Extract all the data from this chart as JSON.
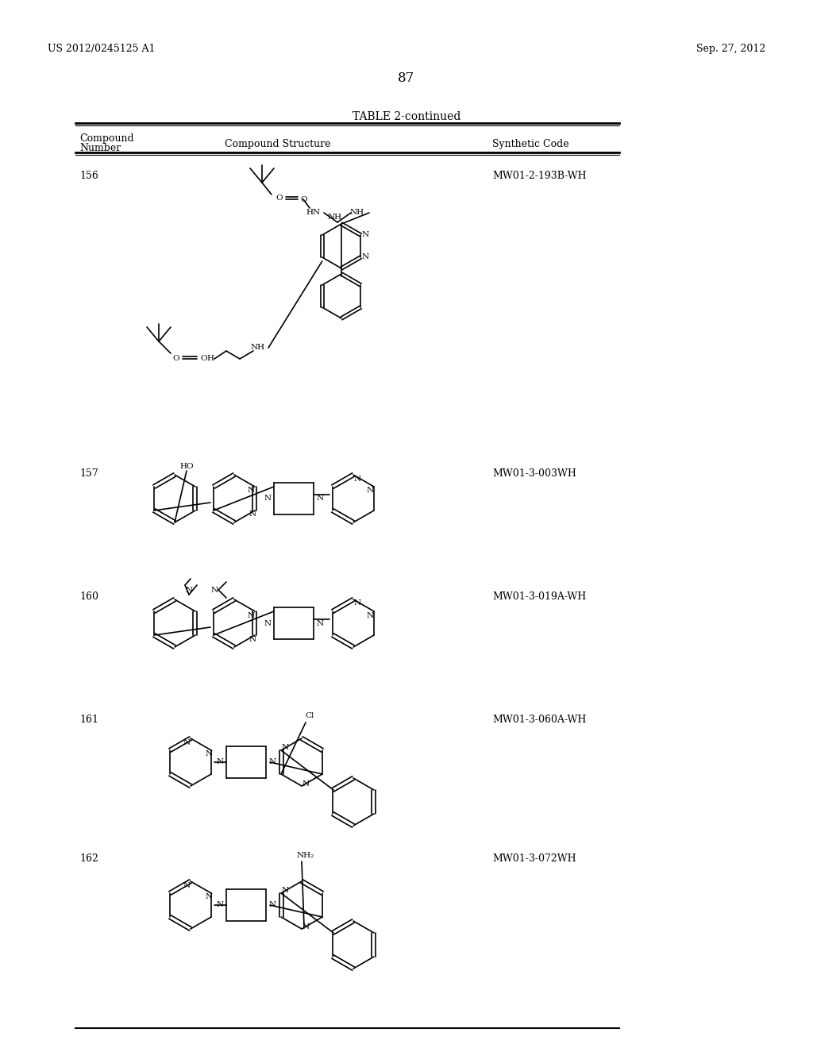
{
  "background_color": "#ffffff",
  "page_header_left": "US 2012/0245125 A1",
  "page_header_right": "Sep. 27, 2012",
  "page_number": "87",
  "table_title": "TABLE 2-continued",
  "col_headers": [
    "Compound\nNumber",
    "Compound Structure",
    "Synthetic Code"
  ],
  "compounds": [
    {
      "number": "156",
      "code": "MW01-2-193B-WH"
    },
    {
      "number": "157",
      "code": "MW01-3-003WH"
    },
    {
      "number": "160",
      "code": "MW01-3-019A-WH"
    },
    {
      "number": "161",
      "code": "MW01-3-060A-WH"
    },
    {
      "number": "162",
      "code": "MW01-3-072WH"
    }
  ],
  "font_size_header": 9,
  "font_size_body": 9,
  "font_size_page": 9,
  "font_size_title": 10
}
